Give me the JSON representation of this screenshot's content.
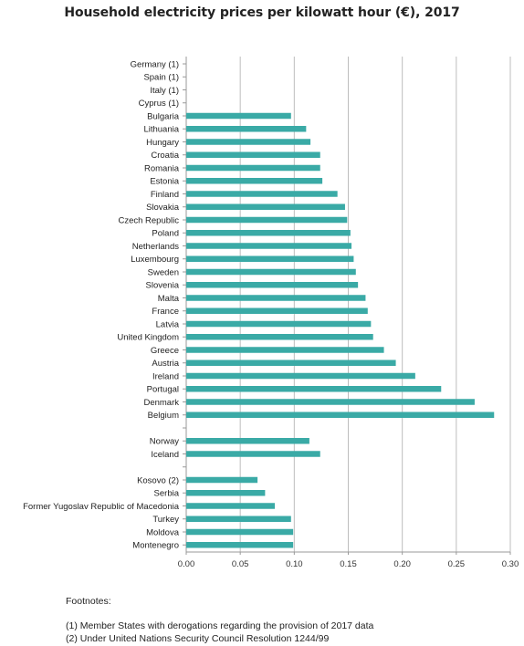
{
  "chart_data": {
    "type": "bar",
    "orientation": "horizontal",
    "title": "Household electricity prices per kilowatt hour (€), 2017",
    "xlim": [
      0,
      0.3
    ],
    "x_ticks": [
      "0.00",
      "0.05",
      "0.10",
      "0.15",
      "0.20",
      "0.25",
      "0.30"
    ],
    "grid": true,
    "bar_color": "#3aaaa6",
    "groups": [
      {
        "categories": [
          "Germany (1)",
          "Spain (1)",
          "Italy (1)",
          "Cyprus (1)",
          "Bulgaria",
          "Lithuania",
          "Hungary",
          "Croatia",
          "Romania",
          "Estonia",
          "Finland",
          "Slovakia",
          "Czech Republic",
          "Poland",
          "Netherlands",
          "Luxembourg",
          "Sweden",
          "Slovenia",
          "Malta",
          "France",
          "Latvia",
          "United Kingdom",
          "Greece",
          "Austria",
          "Ireland",
          "Portugal",
          "Denmark",
          "Belgium"
        ],
        "values": [
          0,
          0,
          0,
          0,
          0.097,
          0.111,
          0.115,
          0.124,
          0.124,
          0.126,
          0.14,
          0.147,
          0.149,
          0.152,
          0.153,
          0.155,
          0.157,
          0.159,
          0.166,
          0.168,
          0.171,
          0.173,
          0.183,
          0.194,
          0.212,
          0.236,
          0.267,
          0.285
        ]
      },
      {
        "categories": [
          "Norway",
          "Iceland"
        ],
        "values": [
          0.114,
          0.124
        ]
      },
      {
        "categories": [
          "Kosovo (2)",
          "Serbia",
          "Former Yugoslav Republic of Macedonia",
          "Turkey",
          "Moldova",
          "Montenegro"
        ],
        "values": [
          0.066,
          0.073,
          0.082,
          0.097,
          0.099,
          0.099
        ]
      }
    ]
  },
  "footnotes": {
    "heading": "Footnotes:",
    "notes": [
      "(1)  Member States with derogations regarding the provision of 2017 data",
      "(2)  Under United Nations Security Council Resolution 1244/99"
    ]
  }
}
